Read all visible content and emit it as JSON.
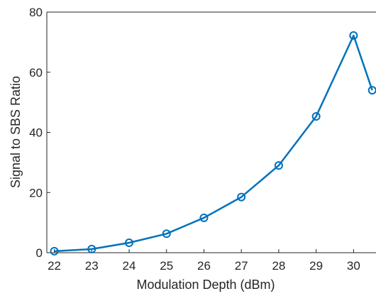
{
  "chart_data": {
    "type": "line",
    "xlabel": "Modulation Depth (dBm)",
    "ylabel": "Signal to SBS Ratio",
    "xlim": [
      21.8,
      30.6
    ],
    "ylim": [
      0,
      80
    ],
    "x_ticks": [
      "22",
      "23",
      "24",
      "25",
      "26",
      "27",
      "28",
      "29",
      "30"
    ],
    "y_ticks": [
      "0",
      "20",
      "40",
      "60",
      "80"
    ],
    "grid": false,
    "series": [
      {
        "color": "#0072BD",
        "marker": "circle",
        "x": [
          22,
          23,
          24,
          25,
          26,
          27,
          28,
          29,
          30,
          30.5
        ],
        "y": [
          0.5,
          1.2,
          3.3,
          6.3,
          11.6,
          18.5,
          29.0,
          45.3,
          72.2,
          54.0
        ]
      }
    ]
  }
}
